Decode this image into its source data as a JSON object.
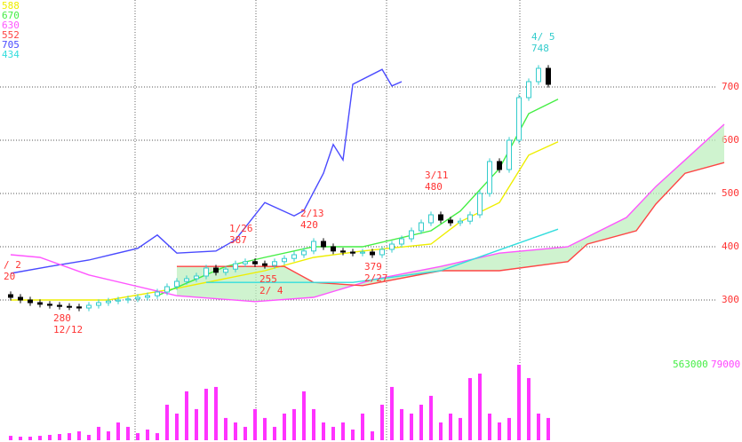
{
  "chart_data": {
    "type": "candlestick",
    "xlim": [
      -1,
      74
    ],
    "ylim": [
      200,
      860
    ],
    "yticks": [
      300,
      400,
      500,
      600,
      700
    ],
    "tick_color": "#ff3333",
    "grid": true,
    "candles": {
      "up_color": "#33cccc",
      "down_color": "#000000",
      "open": [
        310,
        305,
        300,
        295,
        292,
        290,
        288,
        287,
        285,
        290,
        295,
        298,
        300,
        302,
        305,
        308,
        315,
        325,
        335,
        340,
        345,
        360,
        352,
        358,
        368,
        372,
        368,
        365,
        372,
        378,
        385,
        392,
        410,
        400,
        392,
        390,
        388,
        390,
        385,
        395,
        405,
        415,
        430,
        445,
        460,
        450,
        445,
        448,
        460,
        500,
        560,
        545,
        600,
        680,
        710,
        735
      ],
      "high": [
        316,
        311,
        306,
        301,
        298,
        296,
        294,
        293,
        296,
        301,
        304,
        306,
        308,
        311,
        314,
        321,
        331,
        341,
        346,
        351,
        366,
        366,
        364,
        374,
        378,
        378,
        374,
        378,
        384,
        391,
        398,
        416,
        416,
        406,
        398,
        396,
        396,
        396,
        401,
        411,
        421,
        436,
        451,
        466,
        466,
        456,
        454,
        466,
        506,
        566,
        566,
        606,
        686,
        716,
        741,
        741
      ],
      "low": [
        299,
        294,
        289,
        286,
        284,
        282,
        281,
        279,
        279,
        284,
        289,
        292,
        294,
        296,
        299,
        302,
        309,
        319,
        329,
        334,
        339,
        346,
        346,
        352,
        362,
        362,
        359,
        359,
        366,
        372,
        379,
        386,
        394,
        386,
        384,
        382,
        382,
        379,
        379,
        389,
        399,
        409,
        424,
        439,
        444,
        439,
        439,
        442,
        454,
        494,
        539,
        539,
        594,
        674,
        704,
        699
      ],
      "close": [
        305,
        300,
        295,
        292,
        290,
        288,
        287,
        285,
        290,
        295,
        298,
        300,
        302,
        305,
        308,
        315,
        325,
        335,
        340,
        345,
        360,
        352,
        358,
        368,
        372,
        368,
        365,
        372,
        378,
        385,
        392,
        410,
        400,
        392,
        390,
        388,
        390,
        385,
        395,
        405,
        415,
        430,
        445,
        460,
        450,
        445,
        448,
        460,
        500,
        560,
        545,
        600,
        680,
        710,
        735,
        705
      ]
    },
    "series": [
      {
        "color": "#4a4aff",
        "x": [
          0,
          4,
          8,
          13,
          15,
          17,
          21,
          23,
          26,
          29,
          30,
          32,
          33,
          34,
          35,
          38,
          39,
          40
        ],
        "values": [
          350,
          363,
          375,
          397,
          422,
          388,
          392,
          413,
          483,
          458,
          468,
          538,
          592,
          563,
          705,
          733,
          702,
          710
        ]
      },
      {
        "color": "#eeee00",
        "x": [
          0,
          10,
          17,
          26,
          31,
          36,
          43,
          46,
          50,
          53,
          56
        ],
        "values": [
          300,
          300,
          322,
          355,
          380,
          392,
          405,
          447,
          483,
          572,
          597
        ]
      },
      {
        "color": "#44ee44",
        "x": [
          15,
          22,
          26,
          31,
          36,
          43,
          46,
          50,
          53,
          56
        ],
        "values": [
          308,
          363,
          380,
          400,
          400,
          430,
          467,
          547,
          650,
          677
        ]
      },
      {
        "color": "#ff55ff",
        "x": [
          0,
          3,
          8,
          17,
          25,
          31,
          37,
          44,
          50,
          57,
          63,
          66,
          69,
          73
        ],
        "values": [
          385,
          380,
          347,
          308,
          297,
          305,
          338,
          363,
          388,
          400,
          455,
          513,
          563,
          630
        ]
      },
      {
        "color": "#ff4444",
        "x": [
          17,
          28,
          31,
          36,
          44,
          50,
          57,
          59,
          64,
          66,
          69,
          73
        ],
        "values": [
          363,
          363,
          333,
          327,
          355,
          355,
          372,
          405,
          430,
          480,
          538,
          558
        ]
      },
      {
        "color": "#33dddd",
        "x": [
          20,
          35,
          44,
          56
        ],
        "values": [
          333,
          333,
          355,
          433
        ]
      }
    ],
    "cloud_color": "#bbeebb",
    "volume": {
      "color": "#ff33ff",
      "max": 79000,
      "values": [
        4600,
        3700,
        3700,
        4600,
        5600,
        6500,
        7400,
        9300,
        5600,
        14000,
        9300,
        18600,
        14000,
        7400,
        11200,
        7400,
        37200,
        27900,
        51200,
        32600,
        53900,
        55800,
        23300,
        18600,
        14000,
        32600,
        23300,
        14000,
        27900,
        32600,
        51200,
        32600,
        18600,
        14000,
        18600,
        11200,
        27900,
        9300,
        37200,
        55800,
        32600,
        27900,
        37200,
        46500,
        18600,
        27900,
        23300,
        65100,
        69800,
        27900,
        18600,
        23300,
        79000,
        65100,
        27900,
        23300
      ]
    },
    "legend_values": [
      {
        "text": "588",
        "color": "#eeee00"
      },
      {
        "text": "670",
        "color": "#44ee44"
      },
      {
        "text": "630",
        "color": "#ff55ff"
      },
      {
        "text": "552",
        "color": "#ff4444"
      },
      {
        "text": "705",
        "color": "#4a4aff"
      },
      {
        "text": "434",
        "color": "#33dddd"
      }
    ],
    "annotations": [
      {
        "lines": [
          "4/ 5",
          "748"
        ],
        "color": "#33cccc"
      },
      {
        "lines": [
          "3/11",
          "480"
        ],
        "color": "#ff3333"
      },
      {
        "lines": [
          "2/13",
          "420"
        ],
        "color": "#ff3333"
      },
      {
        "lines": [
          "1/26",
          "387"
        ],
        "color": "#ff3333"
      },
      {
        "lines": [
          "/ 2",
          "20"
        ],
        "color": "#ff3333"
      },
      {
        "lines": [
          "280",
          "12/12"
        ],
        "color": "#ff3333"
      },
      {
        "lines": [
          "255",
          "2/ 4"
        ],
        "color": "#ff3333"
      },
      {
        "lines": [
          "379",
          "2/27"
        ],
        "color": "#ff3333"
      }
    ],
    "scale_labels": [
      {
        "text": "563000",
        "color": "#44ee44"
      },
      {
        "text": "79000",
        "color": "#ff44ff"
      }
    ]
  }
}
